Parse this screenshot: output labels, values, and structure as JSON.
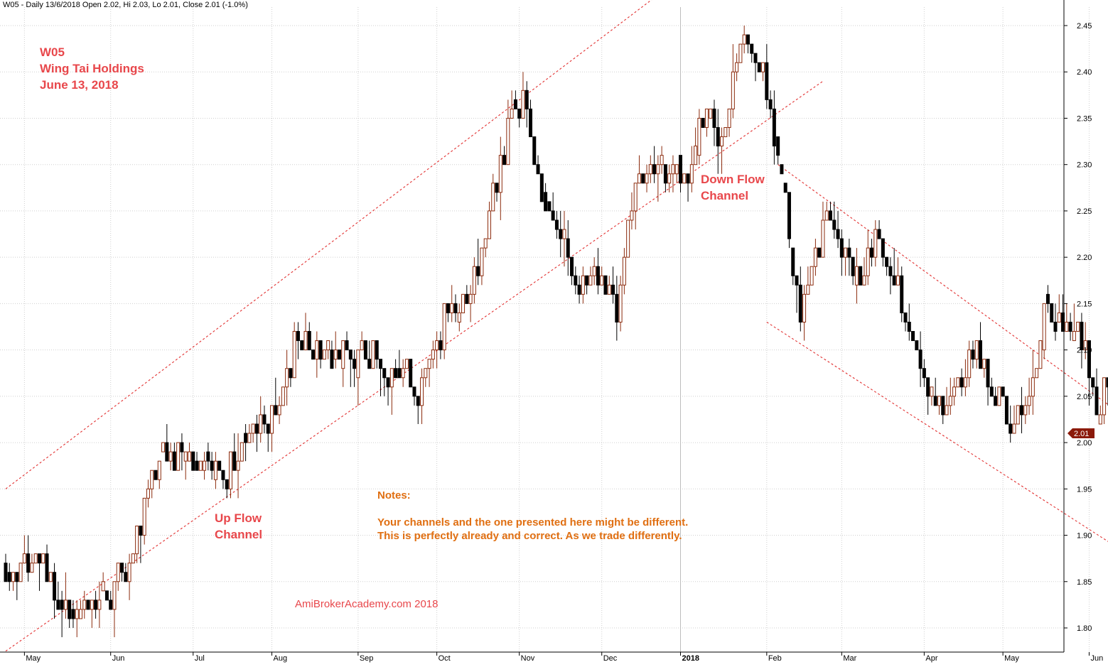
{
  "header": {
    "symbol": "W05",
    "text": "W05 - Daily 13/6/2018 Open 2.02, Hi 2.03, Lo 2.01, Close 2.01 (-1.0%)"
  },
  "annotations": {
    "title_lines": [
      "W05",
      "Wing Tai Holdings",
      "June 13, 2018"
    ],
    "down_flow": [
      "Down Flow",
      "Channel"
    ],
    "up_flow": [
      "Up Flow",
      "Channel"
    ],
    "notes_title": "Notes:",
    "notes_lines": [
      "Your channels and the one presented here might be different.",
      "This is perfectly already and correct.  As we trade differently."
    ],
    "watermark": "AmiBrokerAcademy.com  2018"
  },
  "colors": {
    "up_candle": "#8b2a0c",
    "down_candle": "#000000",
    "channel_line": "#e23030",
    "grid": "#cfcfcf",
    "price_tag": "#8b1a0a"
  },
  "chart_data": {
    "type": "candlestick",
    "ylim": [
      1.77,
      2.46
    ],
    "y_ticks": [
      "1.80",
      "1.85",
      "1.90",
      "1.95",
      "2.00",
      "2.05",
      "2.10",
      "2.15",
      "2.20",
      "2.25",
      "2.30",
      "2.35",
      "2.40",
      "2.45"
    ],
    "x_ticks": [
      "May",
      "Jun",
      "Jul",
      "Aug",
      "Sep",
      "Oct",
      "Nov",
      "Dec",
      "2018",
      "Feb",
      "Mar",
      "Apr",
      "May",
      "Jun"
    ],
    "last_price_label": "2.01",
    "last": {
      "open": 2.02,
      "high": 2.03,
      "low": 2.01,
      "close": 2.01
    },
    "anchors": [
      {
        "date": "2017-04-24",
        "price": 1.86
      },
      {
        "date": "2017-05-08",
        "price": 1.87
      },
      {
        "date": "2017-05-17",
        "price": 1.81
      },
      {
        "date": "2017-05-29",
        "price": 1.82
      },
      {
        "date": "2017-06-12",
        "price": 1.9
      },
      {
        "date": "2017-06-21",
        "price": 1.99
      },
      {
        "date": "2017-07-03",
        "price": 1.98
      },
      {
        "date": "2017-07-12",
        "price": 1.96
      },
      {
        "date": "2017-07-24",
        "price": 2.0
      },
      {
        "date": "2017-08-03",
        "price": 2.04
      },
      {
        "date": "2017-08-10",
        "price": 2.12
      },
      {
        "date": "2017-08-22",
        "price": 2.09
      },
      {
        "date": "2017-09-05",
        "price": 2.1
      },
      {
        "date": "2017-09-18",
        "price": 2.07
      },
      {
        "date": "2017-09-25",
        "price": 2.05
      },
      {
        "date": "2017-10-04",
        "price": 2.14
      },
      {
        "date": "2017-10-12",
        "price": 2.15
      },
      {
        "date": "2017-10-18",
        "price": 2.21
      },
      {
        "date": "2017-10-25",
        "price": 2.31
      },
      {
        "date": "2017-11-02",
        "price": 2.38
      },
      {
        "date": "2017-11-09",
        "price": 2.26
      },
      {
        "date": "2017-11-15",
        "price": 2.22
      },
      {
        "date": "2017-11-23",
        "price": 2.17
      },
      {
        "date": "2017-12-01",
        "price": 2.17
      },
      {
        "date": "2017-12-07",
        "price": 2.14
      },
      {
        "date": "2017-12-14",
        "price": 2.29
      },
      {
        "date": "2017-12-22",
        "price": 2.3
      },
      {
        "date": "2018-01-02",
        "price": 2.28
      },
      {
        "date": "2018-01-09",
        "price": 2.36
      },
      {
        "date": "2018-01-16",
        "price": 2.31
      },
      {
        "date": "2018-01-23",
        "price": 2.44
      },
      {
        "date": "2018-01-31",
        "price": 2.4
      },
      {
        "date": "2018-02-06",
        "price": 2.3
      },
      {
        "date": "2018-02-08",
        "price": 2.26
      },
      {
        "date": "2018-02-14",
        "price": 2.13
      },
      {
        "date": "2018-02-22",
        "price": 2.24
      },
      {
        "date": "2018-03-01",
        "price": 2.21
      },
      {
        "date": "2018-03-08",
        "price": 2.17
      },
      {
        "date": "2018-03-15",
        "price": 2.23
      },
      {
        "date": "2018-03-22",
        "price": 2.16
      },
      {
        "date": "2018-03-29",
        "price": 2.1
      },
      {
        "date": "2018-04-05",
        "price": 2.04
      },
      {
        "date": "2018-04-12",
        "price": 2.04
      },
      {
        "date": "2018-04-19",
        "price": 2.11
      },
      {
        "date": "2018-04-26",
        "price": 2.06
      },
      {
        "date": "2018-05-03",
        "price": 2.03
      },
      {
        "date": "2018-05-10",
        "price": 2.04
      },
      {
        "date": "2018-05-16",
        "price": 2.15
      },
      {
        "date": "2018-05-22",
        "price": 2.13
      },
      {
        "date": "2018-05-29",
        "price": 2.12
      },
      {
        "date": "2018-06-05",
        "price": 2.03
      },
      {
        "date": "2018-06-08",
        "price": 2.08
      },
      {
        "date": "2018-06-13",
        "price": 2.01
      }
    ],
    "channel_lines": [
      {
        "name": "Up Flow",
        "points": [
          {
            "date": "2017-04-24",
            "price": 1.95
          },
          {
            "date": "2017-12-21",
            "price": 2.48
          }
        ]
      },
      {
        "name": "Up Flow",
        "points": [
          {
            "date": "2017-04-24",
            "price": 1.775
          },
          {
            "date": "2018-02-22",
            "price": 2.39
          }
        ]
      },
      {
        "name": "Down Flow",
        "points": [
          {
            "date": "2018-02-06",
            "price": 2.3
          },
          {
            "date": "2018-06-28",
            "price": 2.0
          }
        ]
      },
      {
        "name": "Down Flow",
        "points": [
          {
            "date": "2018-02-01",
            "price": 2.13
          },
          {
            "date": "2018-06-21",
            "price": 1.87
          }
        ]
      }
    ]
  }
}
